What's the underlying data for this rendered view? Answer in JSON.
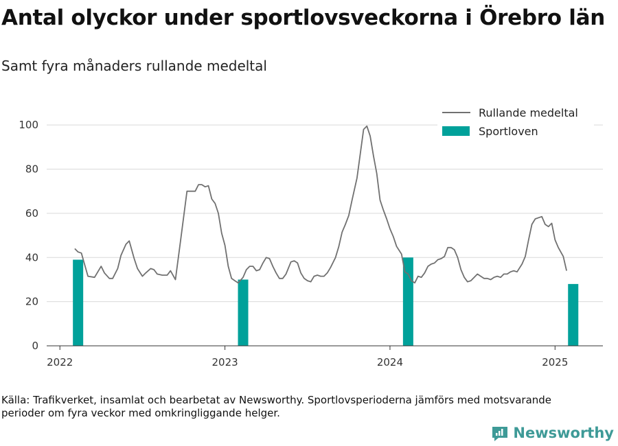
{
  "title": "Antal olyckor under sportlovsveckorna i Örebro län",
  "subtitle": "Samt fyra månaders rullande medeltal",
  "source": "Källa: Trafikverket, insamlat och bearbetat av Newsworthy. Sportlovsperioderna jämförs med motsvarande perioder om fyra veckor med omkringliggande helger.",
  "brand": "Newsworthy",
  "colors": {
    "line": "#707070",
    "bar": "#00a19a",
    "grid": "#d9d9d9",
    "brand": "#3e9a97"
  },
  "chart_data": {
    "type": "bar+line",
    "ylim": [
      0,
      110
    ],
    "yticks": [
      "0",
      "20",
      "40",
      "60",
      "80",
      "100"
    ],
    "xlim": [
      2021.92,
      2025.29
    ],
    "xticks": [
      "2022",
      "2023",
      "2024",
      "2025"
    ],
    "grid": true,
    "legend_position": "top-right",
    "legend": [
      "Rullande medeltal",
      "Sportloven"
    ],
    "bars": {
      "name": "Sportloven",
      "x": [
        2022.11,
        2023.11,
        2024.11,
        2025.11
      ],
      "values": [
        39,
        30,
        40,
        28
      ]
    },
    "line": {
      "name": "Rullande medeltal",
      "points": [
        [
          2022.09,
          44
        ],
        [
          2022.11,
          42.5
        ],
        [
          2022.13,
          42
        ],
        [
          2022.17,
          31.5
        ],
        [
          2022.21,
          31
        ],
        [
          2022.25,
          36
        ],
        [
          2022.27,
          33
        ],
        [
          2022.3,
          30.5
        ],
        [
          2022.32,
          30.5
        ],
        [
          2022.35,
          35
        ],
        [
          2022.37,
          41
        ],
        [
          2022.4,
          46
        ],
        [
          2022.42,
          47.5
        ],
        [
          2022.45,
          39.5
        ],
        [
          2022.47,
          35
        ],
        [
          2022.5,
          31.5
        ],
        [
          2022.52,
          33
        ],
        [
          2022.55,
          35
        ],
        [
          2022.57,
          34.5
        ],
        [
          2022.59,
          32.5
        ],
        [
          2022.62,
          32
        ],
        [
          2022.65,
          32
        ],
        [
          2022.67,
          34
        ],
        [
          2022.7,
          30
        ],
        [
          2022.73,
          47
        ],
        [
          2022.77,
          70
        ],
        [
          2022.8,
          70
        ],
        [
          2022.82,
          70
        ],
        [
          2022.84,
          73
        ],
        [
          2022.86,
          73
        ],
        [
          2022.88,
          72
        ],
        [
          2022.9,
          72.5
        ],
        [
          2022.92,
          66.5
        ],
        [
          2022.94,
          64.5
        ],
        [
          2022.96,
          60
        ],
        [
          2022.98,
          51
        ],
        [
          2023.0,
          45.5
        ],
        [
          2023.02,
          36
        ],
        [
          2023.04,
          30.5
        ],
        [
          2023.06,
          29.5
        ],
        [
          2023.08,
          28.5
        ],
        [
          2023.11,
          31
        ],
        [
          2023.13,
          34.5
        ],
        [
          2023.15,
          36
        ],
        [
          2023.17,
          36
        ],
        [
          2023.19,
          34
        ],
        [
          2023.21,
          34.5
        ],
        [
          2023.23,
          37.5
        ],
        [
          2023.25,
          40
        ],
        [
          2023.27,
          39.5
        ],
        [
          2023.29,
          36
        ],
        [
          2023.31,
          33
        ],
        [
          2023.33,
          30.5
        ],
        [
          2023.35,
          30.5
        ],
        [
          2023.37,
          32.5
        ],
        [
          2023.4,
          38
        ],
        [
          2023.42,
          38.5
        ],
        [
          2023.44,
          37.5
        ],
        [
          2023.46,
          33
        ],
        [
          2023.48,
          30.5
        ],
        [
          2023.5,
          29.5
        ],
        [
          2023.52,
          29
        ],
        [
          2023.54,
          31.5
        ],
        [
          2023.56,
          32
        ],
        [
          2023.58,
          31.5
        ],
        [
          2023.6,
          31.5
        ],
        [
          2023.62,
          33
        ],
        [
          2023.64,
          35.5
        ],
        [
          2023.67,
          40
        ],
        [
          2023.69,
          45
        ],
        [
          2023.71,
          51.5
        ],
        [
          2023.73,
          55
        ],
        [
          2023.75,
          59
        ],
        [
          2023.77,
          66
        ],
        [
          2023.8,
          76
        ],
        [
          2023.82,
          87
        ],
        [
          2023.84,
          98
        ],
        [
          2023.86,
          99.5
        ],
        [
          2023.88,
          95
        ],
        [
          2023.9,
          86
        ],
        [
          2023.92,
          78
        ],
        [
          2023.94,
          66
        ],
        [
          2023.96,
          61.5
        ],
        [
          2023.98,
          57.5
        ],
        [
          2024.0,
          53
        ],
        [
          2024.02,
          49.5
        ],
        [
          2024.04,
          45
        ],
        [
          2024.07,
          41.5
        ],
        [
          2024.09,
          33.5
        ],
        [
          2024.11,
          32.5
        ],
        [
          2024.13,
          29.5
        ],
        [
          2024.15,
          28.5
        ],
        [
          2024.17,
          31.5
        ],
        [
          2024.19,
          31
        ],
        [
          2024.21,
          33
        ],
        [
          2024.23,
          36
        ],
        [
          2024.25,
          37
        ],
        [
          2024.27,
          37.5
        ],
        [
          2024.29,
          39
        ],
        [
          2024.31,
          39.5
        ],
        [
          2024.33,
          40.5
        ],
        [
          2024.35,
          44.5
        ],
        [
          2024.37,
          44.5
        ],
        [
          2024.39,
          43.5
        ],
        [
          2024.41,
          40
        ],
        [
          2024.43,
          34.5
        ],
        [
          2024.45,
          31
        ],
        [
          2024.47,
          29
        ],
        [
          2024.49,
          29.5
        ],
        [
          2024.51,
          31
        ],
        [
          2024.53,
          32.5
        ],
        [
          2024.55,
          31.5
        ],
        [
          2024.57,
          30.5
        ],
        [
          2024.59,
          30.5
        ],
        [
          2024.61,
          30
        ],
        [
          2024.63,
          31
        ],
        [
          2024.65,
          31.5
        ],
        [
          2024.67,
          31
        ],
        [
          2024.69,
          32.5
        ],
        [
          2024.71,
          32.5
        ],
        [
          2024.73,
          33.5
        ],
        [
          2024.75,
          34
        ],
        [
          2024.77,
          33.5
        ],
        [
          2024.8,
          37
        ],
        [
          2024.82,
          40.5
        ],
        [
          2024.84,
          48
        ],
        [
          2024.86,
          55
        ],
        [
          2024.88,
          57.5
        ],
        [
          2024.9,
          58
        ],
        [
          2024.92,
          58.5
        ],
        [
          2024.94,
          55
        ],
        [
          2024.96,
          54
        ],
        [
          2024.98,
          55.5
        ],
        [
          2025.0,
          48
        ],
        [
          2025.02,
          44.5
        ],
        [
          2025.05,
          40.5
        ],
        [
          2025.07,
          34
        ]
      ]
    }
  }
}
